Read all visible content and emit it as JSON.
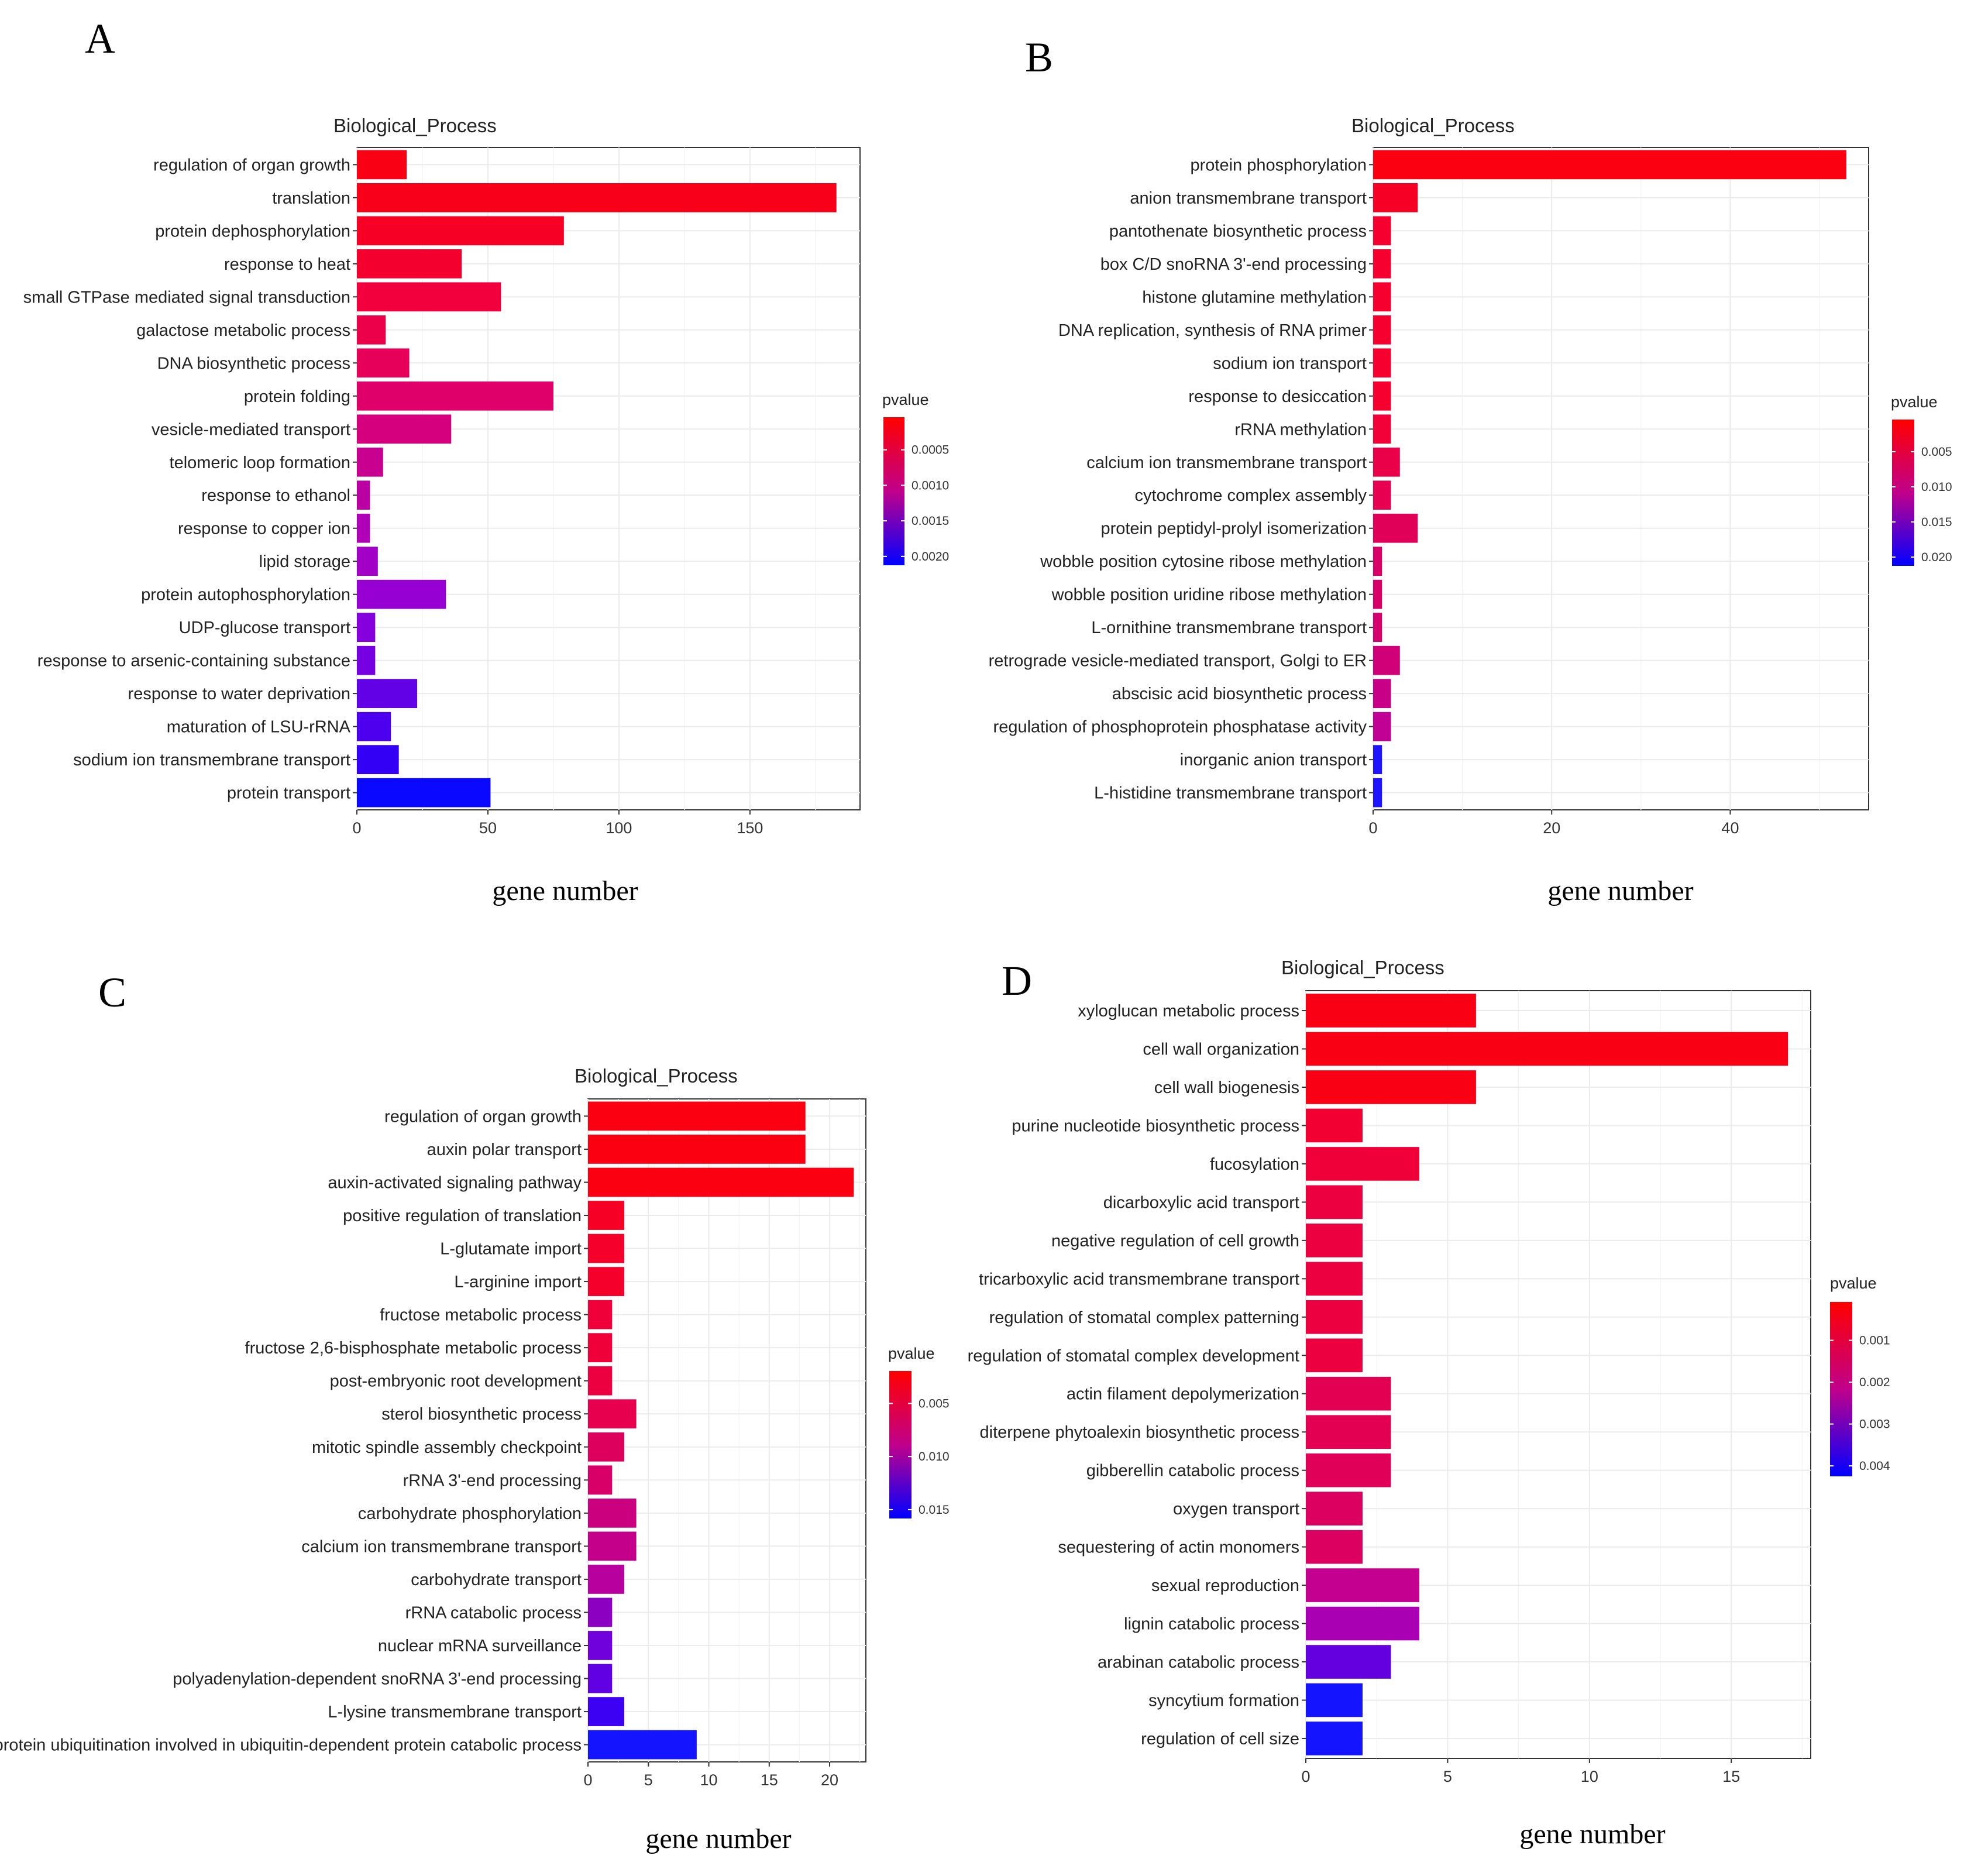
{
  "chart_data": [
    {
      "panel": "A",
      "type": "bar",
      "orientation": "horizontal",
      "title": "Biological_Process",
      "xlabel": "gene number",
      "xlim": [
        0,
        192
      ],
      "xticks": [
        0,
        50,
        100,
        150
      ],
      "legend": {
        "title": "pvalue",
        "ticks": [
          "0.0005",
          "0.0010",
          "0.0015",
          "0.0020"
        ],
        "low_color": "#ff0000",
        "high_color": "#0000ff",
        "position": "right"
      },
      "categories": [
        "regulation of organ growth",
        "translation",
        "protein dephosphorylation",
        "response to heat",
        "small GTPase mediated signal transduction",
        "galactose metabolic process",
        "DNA biosynthetic process",
        "protein folding",
        "vesicle-mediated transport",
        "telomeric loop formation",
        "response to ethanol",
        "response to copper ion",
        "lipid storage",
        "protein autophosphorylation",
        "UDP-glucose transport",
        "response to arsenic-containing substance",
        "response to water deprivation",
        "maturation of LSU-rRNA",
        "sodium ion transmembrane transport",
        "protein transport"
      ],
      "values": [
        19,
        183,
        79,
        40,
        55,
        11,
        20,
        75,
        36,
        10,
        5,
        5,
        8,
        34,
        7,
        7,
        23,
        13,
        16,
        51
      ],
      "colors": [
        "#fa0014",
        "#f9001a",
        "#f70025",
        "#f4002e",
        "#f1003d",
        "#ec004a",
        "#e7005a",
        "#df0069",
        "#d4007e",
        "#c70090",
        "#bb00a3",
        "#b000b7",
        "#a200c7",
        "#9600d3",
        "#8600dd",
        "#7600e2",
        "#6200e6",
        "#4c00ed",
        "#3300f5",
        "#0a08ff"
      ]
    },
    {
      "panel": "B",
      "type": "bar",
      "orientation": "horizontal",
      "title": "Biological_Process",
      "xlabel": "gene number",
      "xlim": [
        0,
        55.5
      ],
      "xticks": [
        0,
        20,
        40
      ],
      "legend": {
        "title": "pvalue",
        "ticks": [
          "0.005",
          "0.010",
          "0.015",
          "0.020"
        ],
        "low_color": "#ff0000",
        "high_color": "#0000ff",
        "position": "right"
      },
      "categories": [
        "protein phosphorylation",
        "anion transmembrane transport",
        "pantothenate biosynthetic process",
        "box C/D snoRNA 3'-end processing",
        "histone glutamine methylation",
        "DNA replication, synthesis of RNA primer",
        "sodium ion transport",
        "response to desiccation",
        "rRNA methylation",
        "calcium ion transmembrane transport",
        "cytochrome complex assembly",
        "protein peptidyl-prolyl isomerization",
        "wobble position cytosine ribose methylation",
        "wobble position uridine ribose methylation",
        "L-ornithine transmembrane transport",
        "retrograde vesicle-mediated transport, Golgi to ER",
        "abscisic acid biosynthetic process",
        "regulation of phosphoprotein phosphatase activity",
        "inorganic anion transport",
        "L-histidine transmembrane transport"
      ],
      "values": [
        53,
        5,
        2,
        2,
        2,
        2,
        2,
        2,
        2,
        3,
        2,
        5,
        1,
        1,
        1,
        3,
        2,
        2,
        1,
        1
      ],
      "colors": [
        "#fa0010",
        "#f70025",
        "#f60030",
        "#f60030",
        "#f60030",
        "#f60030",
        "#f60030",
        "#f60030",
        "#f20038",
        "#ea0048",
        "#e6004f",
        "#e00058",
        "#d80066",
        "#d80066",
        "#d4006c",
        "#cf0078",
        "#c80088",
        "#c10095",
        "#1e14ff",
        "#1e14ff"
      ]
    },
    {
      "panel": "C",
      "type": "bar",
      "orientation": "horizontal",
      "title": "Biological_Process",
      "xlabel": "gene number",
      "xlim": [
        0,
        23
      ],
      "xticks": [
        0,
        5,
        10,
        15,
        20
      ],
      "legend": {
        "title": "pvalue",
        "ticks": [
          "0.005",
          "0.010",
          "0.015"
        ],
        "low_color": "#ff0000",
        "high_color": "#0000ff",
        "position": "right"
      },
      "categories": [
        "regulation of organ growth",
        "auxin polar transport",
        "auxin-activated signaling pathway",
        "positive regulation of translation",
        "L-glutamate import",
        "L-arginine import",
        "fructose metabolic process",
        "fructose 2,6-bisphosphate metabolic process",
        "post-embryonic root development",
        "sterol biosynthetic process",
        "mitotic spindle assembly checkpoint",
        "rRNA 3'-end processing",
        "carbohydrate phosphorylation",
        "calcium ion transmembrane transport",
        "carbohydrate transport",
        "rRNA catabolic process",
        "nuclear mRNA surveillance",
        "polyadenylation-dependent snoRNA 3'-end processing",
        "L-lysine transmembrane transport",
        "protein ubiquitination involved in ubiquitin-dependent protein catabolic process"
      ],
      "values": [
        18,
        18,
        22,
        3,
        3,
        3,
        2,
        2,
        2,
        4,
        3,
        2,
        4,
        4,
        3,
        2,
        2,
        2,
        3,
        9
      ],
      "colors": [
        "#fa0010",
        "#fa0010",
        "#fa0010",
        "#f60025",
        "#f4002b",
        "#f4002b",
        "#ef0038",
        "#ef0038",
        "#ec003f",
        "#e6004d",
        "#de005d",
        "#d80068",
        "#cb007e",
        "#c4008b",
        "#b8009f",
        "#8c00c2",
        "#7000dc",
        "#6200e4",
        "#3c00f2",
        "#1414ff"
      ]
    },
    {
      "panel": "D",
      "type": "bar",
      "orientation": "horizontal",
      "title": "Biological_Process",
      "xlabel": "gene number",
      "xlim": [
        0,
        17.8
      ],
      "xticks": [
        0,
        5,
        10,
        15
      ],
      "legend": {
        "title": "pvalue",
        "ticks": [
          "0.001",
          "0.002",
          "0.003",
          "0.004"
        ],
        "low_color": "#ff0000",
        "high_color": "#0000ff",
        "position": "right"
      },
      "categories": [
        "xyloglucan metabolic process",
        "cell wall organization",
        "cell wall biogenesis",
        "purine nucleotide biosynthetic process",
        "fucosylation",
        "dicarboxylic acid transport",
        "negative regulation of cell growth",
        "tricarboxylic acid transmembrane transport",
        "regulation of stomatal complex patterning",
        "regulation of stomatal complex development",
        "actin filament depolymerization",
        "diterpene phytoalexin biosynthetic process",
        "gibberellin catabolic process",
        "oxygen transport",
        "sequestering of actin monomers",
        "sexual reproduction",
        "lignin catabolic process",
        "arabinan catabolic process",
        "syncytium formation",
        "regulation of cell size"
      ],
      "values": [
        6,
        17,
        6,
        2,
        4,
        2,
        2,
        2,
        2,
        2,
        3,
        3,
        3,
        2,
        2,
        4,
        4,
        3,
        2,
        2
      ],
      "colors": [
        "#fa0014",
        "#fa0014",
        "#fa0014",
        "#f20032",
        "#f00038",
        "#ec0040",
        "#ec0040",
        "#ec0040",
        "#ec0040",
        "#ec0040",
        "#e30052",
        "#e30052",
        "#e00058",
        "#dc0060",
        "#dc0060",
        "#c40090",
        "#aa00b4",
        "#6400e0",
        "#1414ff",
        "#1414ff"
      ]
    }
  ]
}
